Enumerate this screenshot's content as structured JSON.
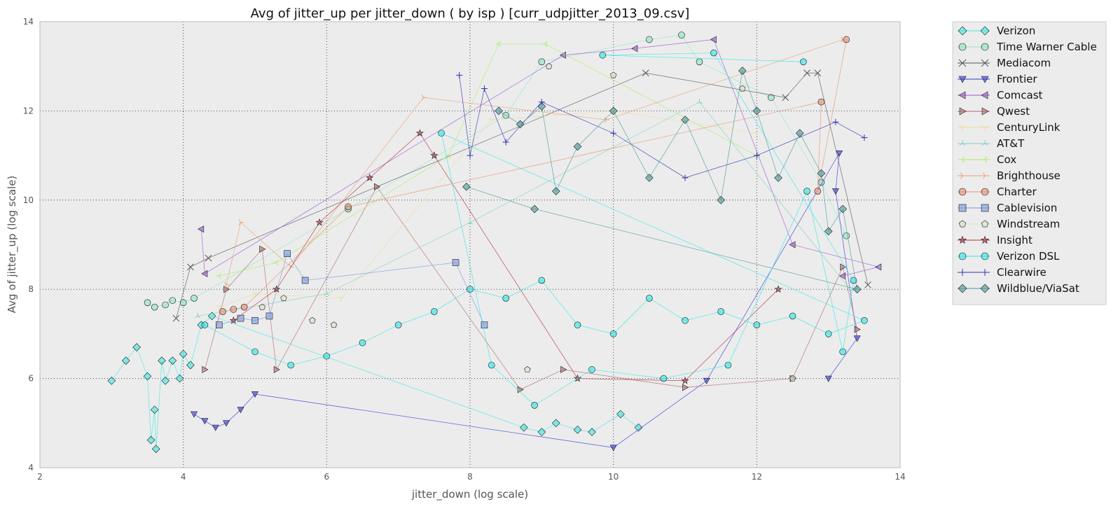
{
  "chart_data": {
    "type": "scatter",
    "title": "Avg of jitter_up per jitter_down ( by isp )  [curr_udpjitter_2013_09.csv]",
    "xlabel": "jitter_down (log scale)",
    "ylabel": "Avg of jitter_up (log scale)",
    "xlim": [
      2,
      14
    ],
    "ylim": [
      4,
      14
    ],
    "xticks": [
      "2",
      "4",
      "6",
      "8",
      "10",
      "12",
      "14"
    ],
    "yticks": [
      "4",
      "6",
      "8",
      "10",
      "12",
      "14"
    ],
    "grid": true,
    "legend_position": "outside-right",
    "series": [
      {
        "name": "Verizon",
        "color": "#40e8e0",
        "marker": "diamond",
        "line": true,
        "points": [
          [
            3.0,
            5.95
          ],
          [
            3.2,
            6.4
          ],
          [
            3.35,
            6.7
          ],
          [
            3.5,
            6.05
          ],
          [
            3.55,
            4.62
          ],
          [
            3.6,
            5.3
          ],
          [
            3.62,
            4.42
          ],
          [
            3.7,
            6.4
          ],
          [
            3.75,
            5.95
          ],
          [
            3.85,
            6.4
          ],
          [
            3.95,
            6.0
          ],
          [
            4.0,
            6.55
          ],
          [
            4.1,
            6.3
          ],
          [
            4.25,
            7.2
          ],
          [
            4.4,
            7.4
          ],
          [
            8.75,
            4.9
          ],
          [
            9.0,
            4.8
          ],
          [
            9.2,
            5.0
          ],
          [
            9.5,
            4.85
          ],
          [
            9.7,
            4.8
          ],
          [
            10.1,
            5.2
          ],
          [
            10.35,
            4.9
          ]
        ]
      },
      {
        "name": "Time Warner Cable",
        "color": "#90e8c8",
        "marker": "circle",
        "line": true,
        "points": [
          [
            3.5,
            7.7
          ],
          [
            3.6,
            7.6
          ],
          [
            3.75,
            7.65
          ],
          [
            3.85,
            7.75
          ],
          [
            4.0,
            7.7
          ],
          [
            4.15,
            7.8
          ],
          [
            6.3,
            9.8
          ],
          [
            8.5,
            11.9
          ],
          [
            9.0,
            13.1
          ],
          [
            10.5,
            13.6
          ],
          [
            10.95,
            13.7
          ],
          [
            11.2,
            13.1
          ],
          [
            12.2,
            12.3
          ],
          [
            12.9,
            10.4
          ],
          [
            13.25,
            9.2
          ]
        ]
      },
      {
        "name": "Mediacom",
        "color": "#555555",
        "marker": "x",
        "line": true,
        "points": [
          [
            3.9,
            7.35
          ],
          [
            4.1,
            8.5
          ],
          [
            4.35,
            8.7
          ],
          [
            10.45,
            12.85
          ],
          [
            12.4,
            12.3
          ],
          [
            12.7,
            12.85
          ],
          [
            12.85,
            12.85
          ],
          [
            13.55,
            8.1
          ]
        ]
      },
      {
        "name": "Frontier",
        "color": "#3535e0",
        "marker": "triangle-down",
        "line": true,
        "points": [
          [
            4.15,
            5.2
          ],
          [
            4.3,
            5.05
          ],
          [
            4.45,
            4.9
          ],
          [
            4.6,
            5.0
          ],
          [
            4.8,
            5.3
          ],
          [
            5.0,
            5.65
          ],
          [
            10.0,
            4.45
          ],
          [
            11.3,
            5.95
          ],
          [
            13.15,
            11.05
          ],
          [
            13.1,
            10.2
          ],
          [
            13.4,
            6.9
          ],
          [
            13.0,
            6.0
          ]
        ]
      },
      {
        "name": "Comcast",
        "color": "#9b59d0",
        "marker": "triangle-left",
        "line": true,
        "points": [
          [
            4.25,
            9.35
          ],
          [
            4.3,
            8.35
          ],
          [
            9.3,
            13.25
          ],
          [
            10.3,
            13.4
          ],
          [
            11.4,
            13.6
          ],
          [
            12.5,
            9.0
          ],
          [
            13.7,
            8.5
          ],
          [
            13.2,
            8.3
          ]
        ]
      },
      {
        "name": "Qwest",
        "color": "#b06a6a",
        "marker": "triangle-right",
        "line": true,
        "points": [
          [
            4.3,
            6.2
          ],
          [
            4.6,
            8.0
          ],
          [
            5.1,
            8.9
          ],
          [
            5.3,
            6.2
          ],
          [
            6.7,
            10.3
          ],
          [
            8.7,
            5.75
          ],
          [
            9.3,
            6.2
          ],
          [
            11.0,
            5.8
          ],
          [
            12.5,
            6.0
          ],
          [
            13.2,
            8.5
          ],
          [
            13.4,
            7.1
          ]
        ]
      },
      {
        "name": "CenturyLink",
        "color": "#e8e0a0",
        "marker": "tri-down",
        "line": true,
        "points": [
          [
            4.5,
            7.6
          ],
          [
            5.0,
            7.9
          ],
          [
            6.2,
            7.8
          ],
          [
            8.3,
            11.8
          ],
          [
            10.0,
            12.0
          ],
          [
            12.0,
            11.5
          ]
        ]
      },
      {
        "name": "AT&T",
        "color": "#80d0c0",
        "marker": "tri-up",
        "line": true,
        "points": [
          [
            4.2,
            7.4
          ],
          [
            6.0,
            7.9
          ],
          [
            8.0,
            9.5
          ],
          [
            11.2,
            12.2
          ],
          [
            13.3,
            8.0
          ]
        ]
      },
      {
        "name": "Cox",
        "color": "#a8f060",
        "marker": "tri-left",
        "line": true,
        "points": [
          [
            4.5,
            8.3
          ],
          [
            5.3,
            8.6
          ],
          [
            7.7,
            11.0
          ],
          [
            8.4,
            13.5
          ],
          [
            9.05,
            13.5
          ],
          [
            12.0,
            11.0
          ]
        ]
      },
      {
        "name": "Brighthouse",
        "color": "#e8a070",
        "marker": "tri-right",
        "line": true,
        "points": [
          [
            4.6,
            8.1
          ],
          [
            4.8,
            9.5
          ],
          [
            5.5,
            8.5
          ],
          [
            7.35,
            12.3
          ],
          [
            9.9,
            11.8
          ],
          [
            13.2,
            13.6
          ]
        ]
      },
      {
        "name": "Charter",
        "color": "#e89070",
        "marker": "circle",
        "line": true,
        "points": [
          [
            4.55,
            7.5
          ],
          [
            4.7,
            7.55
          ],
          [
            4.85,
            7.6
          ],
          [
            6.3,
            9.85
          ],
          [
            12.9,
            12.2
          ],
          [
            12.85,
            10.2
          ],
          [
            13.25,
            13.6
          ]
        ]
      },
      {
        "name": "Cablevision",
        "color": "#7898e0",
        "marker": "square",
        "line": true,
        "points": [
          [
            4.5,
            7.2
          ],
          [
            4.8,
            7.35
          ],
          [
            5.0,
            7.3
          ],
          [
            5.2,
            7.4
          ],
          [
            5.45,
            8.8
          ],
          [
            5.7,
            8.2
          ],
          [
            7.8,
            8.6
          ],
          [
            8.2,
            7.2
          ]
        ]
      },
      {
        "name": "Windstream",
        "color": "#e0e0c8",
        "marker": "pentagon",
        "line": false,
        "points": [
          [
            5.1,
            7.6
          ],
          [
            5.4,
            7.8
          ],
          [
            5.8,
            7.3
          ],
          [
            6.1,
            7.2
          ],
          [
            8.8,
            6.2
          ],
          [
            9.1,
            13.0
          ],
          [
            10.0,
            12.8
          ],
          [
            11.8,
            12.5
          ],
          [
            12.5,
            6.0
          ]
        ]
      },
      {
        "name": "Insight",
        "color": "#b03040",
        "marker": "star",
        "line": true,
        "points": [
          [
            4.7,
            7.3
          ],
          [
            5.3,
            8.0
          ],
          [
            5.9,
            9.5
          ],
          [
            6.6,
            10.5
          ],
          [
            7.3,
            11.5
          ],
          [
            7.5,
            11.0
          ],
          [
            9.5,
            6.0
          ],
          [
            11.0,
            5.95
          ],
          [
            12.3,
            8.0
          ]
        ]
      },
      {
        "name": "Verizon DSL",
        "color": "#30e8e8",
        "marker": "circle",
        "line": true,
        "points": [
          [
            4.3,
            7.2
          ],
          [
            5.0,
            6.6
          ],
          [
            5.5,
            6.3
          ],
          [
            6.0,
            6.5
          ],
          [
            6.5,
            6.8
          ],
          [
            7.0,
            7.2
          ],
          [
            7.5,
            7.5
          ],
          [
            8.0,
            8.0
          ],
          [
            8.5,
            7.8
          ],
          [
            9.0,
            8.2
          ],
          [
            9.5,
            7.2
          ],
          [
            10.0,
            7.0
          ],
          [
            10.5,
            7.8
          ],
          [
            11.0,
            7.3
          ],
          [
            11.5,
            7.5
          ],
          [
            12.0,
            7.2
          ],
          [
            12.5,
            7.4
          ],
          [
            13.0,
            7.0
          ],
          [
            13.5,
            7.3
          ],
          [
            7.6,
            11.5
          ],
          [
            8.3,
            6.3
          ],
          [
            8.9,
            5.4
          ],
          [
            9.7,
            6.2
          ],
          [
            10.7,
            6.0
          ],
          [
            11.6,
            6.3
          ],
          [
            12.7,
            10.2
          ],
          [
            13.2,
            6.6
          ],
          [
            13.35,
            8.2
          ],
          [
            11.4,
            13.3
          ],
          [
            9.85,
            13.25
          ],
          [
            12.65,
            13.1
          ]
        ]
      },
      {
        "name": "Clearwire",
        "color": "#3030b0",
        "marker": "plus",
        "line": true,
        "points": [
          [
            7.85,
            12.8
          ],
          [
            8.0,
            11.0
          ],
          [
            8.2,
            12.5
          ],
          [
            8.5,
            11.3
          ],
          [
            9.0,
            12.2
          ],
          [
            10.0,
            11.5
          ],
          [
            11.0,
            10.5
          ],
          [
            12.0,
            11.0
          ],
          [
            13.1,
            11.75
          ],
          [
            13.5,
            11.4
          ]
        ]
      },
      {
        "name": "Wildblue/ViaSat",
        "color": "#4a9a98",
        "marker": "diamond",
        "line": true,
        "points": [
          [
            8.4,
            12.0
          ],
          [
            8.7,
            11.7
          ],
          [
            9.0,
            12.1
          ],
          [
            9.2,
            10.2
          ],
          [
            9.5,
            11.2
          ],
          [
            10.0,
            12.0
          ],
          [
            10.5,
            10.5
          ],
          [
            11.0,
            11.8
          ],
          [
            11.5,
            10.0
          ],
          [
            11.8,
            12.9
          ],
          [
            12.0,
            12.0
          ],
          [
            12.3,
            10.5
          ],
          [
            12.6,
            11.5
          ],
          [
            12.9,
            10.6
          ],
          [
            13.0,
            9.3
          ],
          [
            13.2,
            9.8
          ],
          [
            13.4,
            8.0
          ],
          [
            8.9,
            9.8
          ],
          [
            7.95,
            10.3
          ]
        ]
      }
    ]
  }
}
